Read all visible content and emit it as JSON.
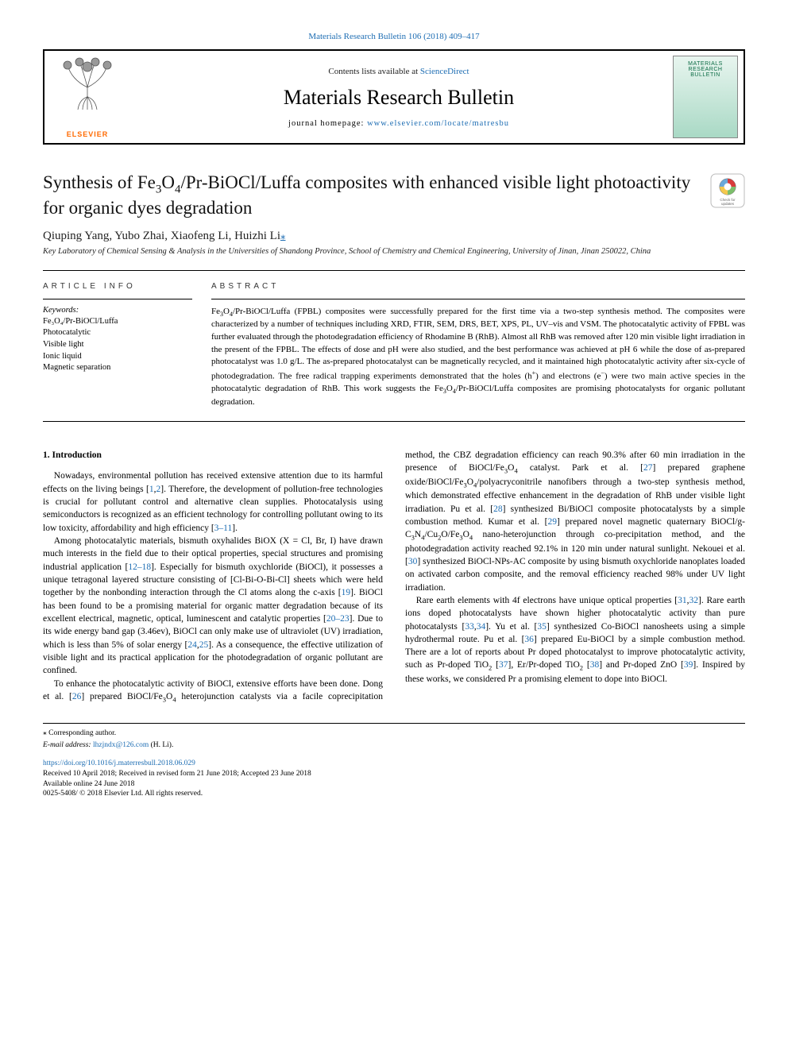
{
  "top_citation": "Materials Research Bulletin 106 (2018) 409–417",
  "header": {
    "contents_at": "Contents lists available at ",
    "contents_link": "ScienceDirect",
    "journal_name": "Materials Research Bulletin",
    "homepage_label": "journal homepage: ",
    "homepage_url": "www.elsevier.com/locate/matresbu",
    "publisher_word": "ELSEVIER",
    "cover_lines": [
      "MATERIALS",
      "RESEARCH",
      "BULLETIN"
    ]
  },
  "title_html": "Synthesis of Fe<sub>3</sub>O<sub>4</sub>/Pr-BiOCl/Luffa composites with enhanced visible light photoactivity for organic dyes degradation",
  "check_updates_label": "Check for updates",
  "authors_html": "Qiuping Yang, Yubo Zhai, Xiaofeng Li, Huizhi Li<a class=\"corr\" href=\"#\">⁎</a>",
  "affiliation": "Key Laboratory of Chemical Sensing & Analysis in the Universities of Shandong Province, School of Chemistry and Chemical Engineering, University of Jinan, Jinan 250022, China",
  "article_info_head": "ARTICLE INFO",
  "abstract_head": "ABSTRACT",
  "keywords_label": "Keywords:",
  "keywords": [
    "Fe₃O₄/Pr-BiOCl/Luffa",
    "Photocatalytic",
    "Visible light",
    "Ionic liquid",
    "Magnetic separation"
  ],
  "abstract_html": "Fe<sub>3</sub>O<sub>4</sub>/Pr-BiOCl/Luffa (FPBL) composites were successfully prepared for the first time via a two-step synthesis method. The composites were characterized by a number of techniques including XRD, FTIR, SEM, DRS, BET, XPS, PL, UV–vis and VSM. The photocatalytic activity of FPBL was further evaluated through the photodegradation efficiency of Rhodamine B (RhB). Almost all RhB was removed after 120 min visible light irradiation in the present of the FPBL. The effects of dose and pH were also studied, and the best performance was achieved at pH 6 while the dose of as-prepared photocatalyst was 1.0 g/L. The as-prepared photocatalyst can be magnetically recycled, and it maintained high photocatalytic activity after six-cycle of photodegradation. The free radical trapping experiments demonstrated that the holes (h<sup>+</sup>) and electrons (e<sup>−</sup>) were two main active species in the photocatalytic degradation of RhB. This work suggests the Fe<sub>3</sub>O<sub>4</sub>/Pr-BiOCl/Luffa composites are promising photocatalysts for organic pollutant degradation.",
  "intro_head": "1. Introduction",
  "intro_paragraphs_html": [
    "Nowadays, environmental pollution has received extensive attention due to its harmful effects on the living beings [<a class=\"ref\" href=\"#\">1</a>,<a class=\"ref\" href=\"#\">2</a>]. Therefore, the development of pollution-free technologies is crucial for pollutant control and alternative clean supplies. Photocatalysis using semiconductors is recognized as an efficient technology for controlling pollutant owing to its low toxicity, affordability and high efficiency [<a class=\"ref\" href=\"#\">3–11</a>].",
    "Among photocatalytic materials, bismuth oxyhalides BiOX (X = Cl, Br, I) have drawn much interests in the field due to their optical properties, special structures and promising industrial application [<a class=\"ref\" href=\"#\">12–18</a>]. Especially for bismuth oxychloride (BiOCl), it possesses a unique tetragonal layered structure consisting of [Cl-Bi-O-Bi-Cl] sheets which were held together by the nonbonding interaction through the Cl atoms along the c-axis [<a class=\"ref\" href=\"#\">19</a>]. BiOCl has been found to be a promising material for organic matter degradation because of its excellent electrical, magnetic, optical, luminescent and catalytic properties [<a class=\"ref\" href=\"#\">20–23</a>]. Due to its wide energy band gap (3.46ev), BiOCl can only make use of ultraviolet (UV) irradiation, which is less than 5% of solar energy [<a class=\"ref\" href=\"#\">24</a>,<a class=\"ref\" href=\"#\">25</a>]. As a consequence, the effective utilization of visible light and its practical application for the photodegradation of organic pollutant are confined.",
    "To enhance the photocatalytic activity of BiOCl, extensive efforts have been done. Dong et al. [<a class=\"ref\" href=\"#\">26</a>] prepared BiOCl/Fe<sub>3</sub>O<sub>4</sub> heterojunction catalysts via a facile coprecipitation method, the CBZ degradation efficiency can reach 90.3% after 60 min irradiation in the presence of BiOCl/Fe<sub>3</sub>O<sub>4</sub> catalyst. Park et al. [<a class=\"ref\" href=\"#\">27</a>] prepared graphene oxide/BiOCl/Fe<sub>3</sub>O<sub>4</sub>/polyacryconitrile nanofibers through a two-step synthesis method, which demonstrated effective enhancement in the degradation of RhB under visible light irradiation. Pu et al. [<a class=\"ref\" href=\"#\">28</a>] synthesized Bi/BiOCl composite photocatalysts by a simple combustion method. Kumar et al. [<a class=\"ref\" href=\"#\">29</a>] prepared novel magnetic quaternary BiOCl/g-C<sub>3</sub>N<sub>4</sub>/Cu<sub>2</sub>O/Fe<sub>3</sub>O<sub>4</sub> nano-heterojunction through co-precipitation method, and the photodegradation activity reached 92.1% in 120 min under natural sunlight. Nekouei et al. [<a class=\"ref\" href=\"#\">30</a>] synthesized BiOCl-NPs-AC composite by using bismuth oxychloride nanoplates loaded on activated carbon composite, and the removal efficiency reached 98% under UV light irradiation.",
    "Rare earth elements with 4f electrons have unique optical properties [<a class=\"ref\" href=\"#\">31</a>,<a class=\"ref\" href=\"#\">32</a>]. Rare earth ions doped photocatalysts have shown higher photocatalytic activity than pure photocatalysts [<a class=\"ref\" href=\"#\">33</a>,<a class=\"ref\" href=\"#\">34</a>]. Yu et al. [<a class=\"ref\" href=\"#\">35</a>] synthesized Co-BiOCl nanosheets using a simple hydrothermal route. Pu et al. [<a class=\"ref\" href=\"#\">36</a>] prepared Eu-BiOCl by a simple combustion method. There are a lot of reports about Pr doped photocatalyst to improve photocatalytic activity, such as Pr-doped TiO<sub>2</sub> [<a class=\"ref\" href=\"#\">37</a>], Er/Pr-doped TiO<sub>2</sub> [<a class=\"ref\" href=\"#\">38</a>] and Pr-doped ZnO [<a class=\"ref\" href=\"#\">39</a>]. Inspired by these works, we considered Pr a promising element to dope into BiOCl."
  ],
  "footer": {
    "corr_symbol": "⁎",
    "corr_text": "Corresponding author.",
    "email_label": "E-mail address: ",
    "email": "lhzjndx@126.com",
    "email_tail": " (H. Li).",
    "doi": "https://doi.org/10.1016/j.materresbull.2018.06.029",
    "received": "Received 10 April 2018; Received in revised form 21 June 2018; Accepted 23 June 2018",
    "online": "Available online 24 June 2018",
    "copyright": "0025-5408/ © 2018 Elsevier Ltd. All rights reserved."
  },
  "colors": {
    "link": "#1d6db3",
    "elsevier_orange": "#ff6a00",
    "cover_green": "#0b6b44"
  }
}
